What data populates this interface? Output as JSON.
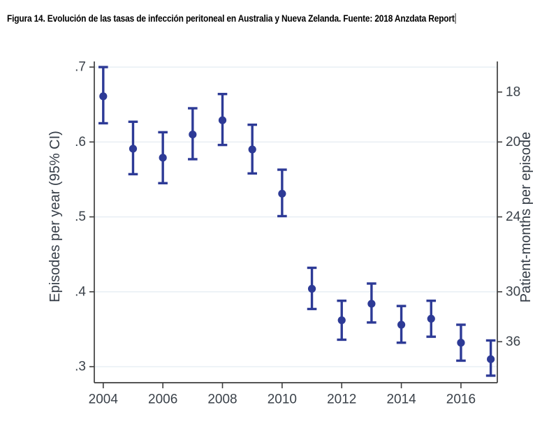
{
  "document": {
    "caption": "Figura 14. Evolución de las tasas de infección peritoneal en Australia y Nueva Zelanda. Fuente: 2018 Anzdata Report"
  },
  "chart_data": {
    "type": "scatter",
    "subtype": "point-estimates-with-95pct-ci-error-bars",
    "title": "",
    "xlabel": "",
    "ylabel_left": "Episodes per year (95% CI)",
    "ylabel_right": "Patient-months per episode",
    "x_tick_labels": [
      "2004",
      "2006",
      "2008",
      "2010",
      "2012",
      "2014",
      "2016"
    ],
    "x_tick_values": [
      2004,
      2006,
      2008,
      2010,
      2012,
      2014,
      2016
    ],
    "y_ticks_left": {
      "labels": [
        ".3",
        ".4",
        ".5",
        ".6",
        ".7"
      ],
      "values": [
        0.3,
        0.4,
        0.5,
        0.6,
        0.7
      ]
    },
    "y_ticks_right": {
      "labels": [
        "18",
        "20",
        "24",
        "30",
        "36"
      ],
      "values": [
        18,
        20,
        24,
        30,
        36
      ],
      "note": "right-axis tick position equals 12 divided by episodes-per-year"
    },
    "xlim": [
      2003.7,
      2017.22
    ],
    "ylim": [
      0.2786,
      0.7075
    ],
    "grid": "horizontal-on",
    "legend": "none",
    "series": [
      {
        "year": 2004,
        "value": 0.661,
        "ci_low": 0.625,
        "ci_high": 0.7
      },
      {
        "year": 2005,
        "value": 0.591,
        "ci_low": 0.557,
        "ci_high": 0.627
      },
      {
        "year": 2006,
        "value": 0.579,
        "ci_low": 0.545,
        "ci_high": 0.613
      },
      {
        "year": 2007,
        "value": 0.61,
        "ci_low": 0.577,
        "ci_high": 0.645
      },
      {
        "year": 2008,
        "value": 0.629,
        "ci_low": 0.596,
        "ci_high": 0.664
      },
      {
        "year": 2009,
        "value": 0.59,
        "ci_low": 0.558,
        "ci_high": 0.623
      },
      {
        "year": 2010,
        "value": 0.531,
        "ci_low": 0.501,
        "ci_high": 0.563
      },
      {
        "year": 2011,
        "value": 0.404,
        "ci_low": 0.377,
        "ci_high": 0.432
      },
      {
        "year": 2012,
        "value": 0.362,
        "ci_low": 0.336,
        "ci_high": 0.388
      },
      {
        "year": 2013,
        "value": 0.384,
        "ci_low": 0.359,
        "ci_high": 0.411
      },
      {
        "year": 2014,
        "value": 0.356,
        "ci_low": 0.332,
        "ci_high": 0.381
      },
      {
        "year": 2015,
        "value": 0.364,
        "ci_low": 0.34,
        "ci_high": 0.388
      },
      {
        "year": 2016,
        "value": 0.332,
        "ci_low": 0.308,
        "ci_high": 0.356
      },
      {
        "year": 2017,
        "value": 0.31,
        "ci_low": 0.288,
        "ci_high": 0.335
      }
    ],
    "colors": {
      "marker": "#2d3a96",
      "error_bar": "#2d3a96",
      "axis_line": "#3d3d3d",
      "tick_label": "#3a4149",
      "axis_title": "#343c46",
      "gridline": "#e6edf3",
      "background": "#ffffff"
    }
  }
}
